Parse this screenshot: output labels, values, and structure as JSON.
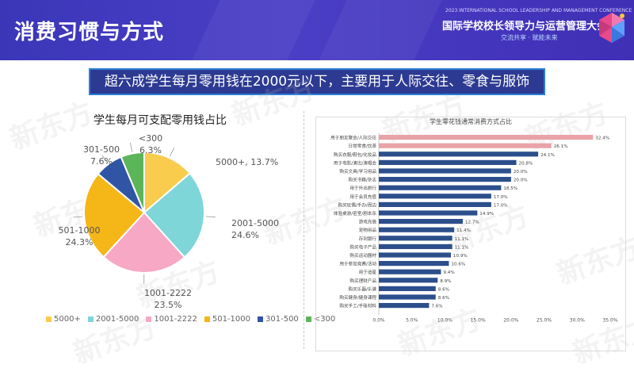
{
  "header": {
    "title": "消费习惯与方式",
    "conference_en": "2023 INTERNATIONAL SCHOOL LEADERSHIP AND MANAGEMENT CONFERENCE",
    "conference_cn": "国际学校校长领导力与运营管理大会",
    "slogan": "交流共享 · 赋能未来"
  },
  "banner": {
    "text": "超六成学生每月零用钱在2000元以下，主要用于人际交往、零食与服饰"
  },
  "watermark": "新东方",
  "chart_data": [
    {
      "type": "pie",
      "title": "学生每月可支配零用钱占比",
      "categories": [
        "5000+",
        "2001-5000",
        "1001-2222",
        "501-1000",
        "301-500",
        "<300"
      ],
      "values": [
        13.7,
        24.6,
        23.5,
        24.3,
        7.6,
        6.3
      ],
      "labels": [
        "5000+, 13.7%",
        "2001-5000\n24.6%",
        "1001-2222\n23.5%",
        "501-1000\n24.3%",
        "301-500\n7.6%",
        "<300\n6.3%"
      ],
      "colors": [
        "#f9cc4e",
        "#7fd6d8",
        "#f7a8c4",
        "#f5b617",
        "#2f55a4",
        "#5db55a"
      ],
      "legend": "bottom"
    },
    {
      "type": "bar",
      "orientation": "horizontal",
      "title": "学生零花钱通常消费方式占比",
      "categories": [
        "用于朋友聚会/人际交往",
        "日常零食/饮茶",
        "购买衣服/鞋包/化妆品",
        "用于电影/演出/演唱会",
        "购买文具/学习用品",
        "购买书籍/杂志",
        "用于外出旅行",
        "用于会员充值",
        "购买玩偶/手办/周边",
        "体验桌游/密室/剧本杀",
        "游戏充值",
        "宠物用品",
        "存到银行",
        "购买电子产品",
        "购买运动器材",
        "用于参加竞赛/活动",
        "用于追星",
        "购买理财产品",
        "购买乐器/乐谱",
        "购买健身/健身课程",
        "购买手工/手账材料"
      ],
      "values": [
        32.4,
        26.1,
        24.1,
        20.8,
        20.0,
        20.0,
        18.5,
        17.0,
        17.0,
        14.9,
        12.7,
        11.4,
        11.1,
        11.1,
        10.9,
        10.6,
        9.4,
        8.9,
        8.6,
        8.6,
        7.6
      ],
      "value_labels": [
        "32.4%",
        "26.1%",
        "24.1%",
        "20.8%",
        "20.0%",
        "20.0%",
        "18.5%",
        "17.0%",
        "17.0%",
        "14.9%",
        "12.7%",
        "11.4%",
        "11.1%",
        "11.1%",
        "10.9%",
        "10.6%",
        "9.4%",
        "8.9%",
        "8.6%",
        "8.6%",
        "7.6%"
      ],
      "xlim": [
        0,
        35
      ],
      "xticks": [
        "0.0%",
        "5.0%",
        "10.0%",
        "15.0%",
        "20.0%",
        "25.0%",
        "30.0%",
        "35.0%"
      ],
      "highlight_color": "#e9a3a8",
      "bar_color": "#2c4f8c",
      "highlighted_indices": [
        0,
        1
      ]
    }
  ]
}
